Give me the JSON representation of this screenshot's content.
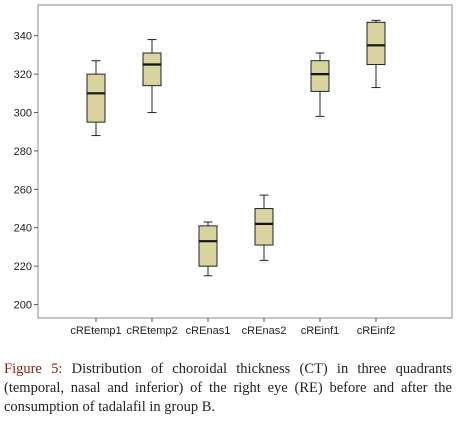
{
  "chart_data": {
    "type": "boxplot",
    "title": "",
    "xlabel": "",
    "ylabel": "",
    "ylim": [
      193,
      356
    ],
    "yticks": [
      200,
      220,
      240,
      260,
      280,
      300,
      320,
      340
    ],
    "grid": false,
    "legend": "none",
    "box_color": "#d8d39f",
    "categories": [
      "cREtemp1",
      "cREtemp2",
      "cREnas1",
      "cREnas2",
      "cREinf1",
      "cREinf2"
    ],
    "boxes": [
      {
        "whisker_low": 288,
        "q1": 295,
        "median": 310,
        "q3": 320,
        "whisker_high": 327
      },
      {
        "whisker_low": 300,
        "q1": 314,
        "median": 325,
        "q3": 331,
        "whisker_high": 338
      },
      {
        "whisker_low": 215,
        "q1": 220,
        "median": 233,
        "q3": 241,
        "whisker_high": 243
      },
      {
        "whisker_low": 223,
        "q1": 231,
        "median": 242,
        "q3": 250,
        "whisker_high": 257
      },
      {
        "whisker_low": 298,
        "q1": 311,
        "median": 320,
        "q3": 327,
        "whisker_high": 331
      },
      {
        "whisker_low": 313,
        "q1": 325,
        "median": 335,
        "q3": 347,
        "whisker_high": 348
      }
    ]
  },
  "caption": {
    "label": "Figure 5:",
    "text": "Distribution of choroidal thickness (CT) in three quadrants (temporal, nasal and inferior) of the right eye (RE) before and after the consumption of tadalafil in group B."
  }
}
